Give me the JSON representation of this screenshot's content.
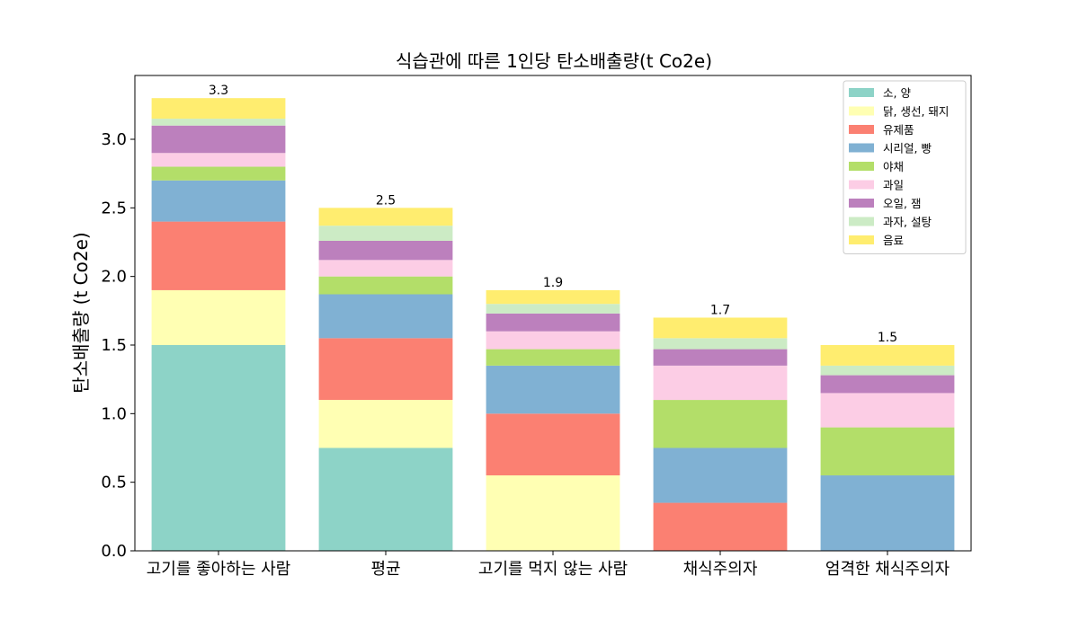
{
  "chart_data": {
    "type": "bar",
    "stacked": true,
    "title": "식습관에 따른 1인당 탄소배출량(t Co2e)",
    "xlabel": "",
    "ylabel": "탄소배출량 (t Co2e)",
    "ylim": [
      0,
      3.465
    ],
    "yticks": [
      "0.0",
      "0.5",
      "1.0",
      "1.5",
      "2.0",
      "2.5",
      "3.0"
    ],
    "categories": [
      "고기를 좋아하는 사람",
      "평균",
      "고기를 먹지 않는 사람",
      "채식주의자",
      "엄격한 채식주의자"
    ],
    "totals": [
      "3.3",
      "2.5",
      "1.9",
      "1.7",
      "1.5"
    ],
    "legend_position": "top-right",
    "series": [
      {
        "name": "소, 양",
        "color": "#8dd3c7",
        "values": [
          1.5,
          0.75,
          0,
          0,
          0
        ]
      },
      {
        "name": "닭, 생선, 돼지",
        "color": "#ffffb3",
        "values": [
          0.4,
          0.35,
          0.55,
          0,
          0
        ]
      },
      {
        "name": "유제품",
        "color": "#fb8072",
        "values": [
          0.5,
          0.45,
          0.45,
          0.35,
          0
        ]
      },
      {
        "name": "시리얼, 빵",
        "color": "#80b1d3",
        "values": [
          0.3,
          0.32,
          0.35,
          0.4,
          0.55
        ]
      },
      {
        "name": "야채",
        "color": "#b3de69",
        "values": [
          0.1,
          0.13,
          0.12,
          0.35,
          0.35
        ]
      },
      {
        "name": "과일",
        "color": "#fccde5",
        "values": [
          0.1,
          0.12,
          0.13,
          0.25,
          0.25
        ]
      },
      {
        "name": "오일, 잼",
        "color": "#bc80bd",
        "values": [
          0.2,
          0.14,
          0.13,
          0.12,
          0.13
        ]
      },
      {
        "name": "과자, 설탕",
        "color": "#ccebc5",
        "values": [
          0.05,
          0.11,
          0.07,
          0.08,
          0.07
        ]
      },
      {
        "name": "음료",
        "color": "#ffed6f",
        "values": [
          0.15,
          0.13,
          0.1,
          0.15,
          0.15
        ]
      }
    ]
  }
}
